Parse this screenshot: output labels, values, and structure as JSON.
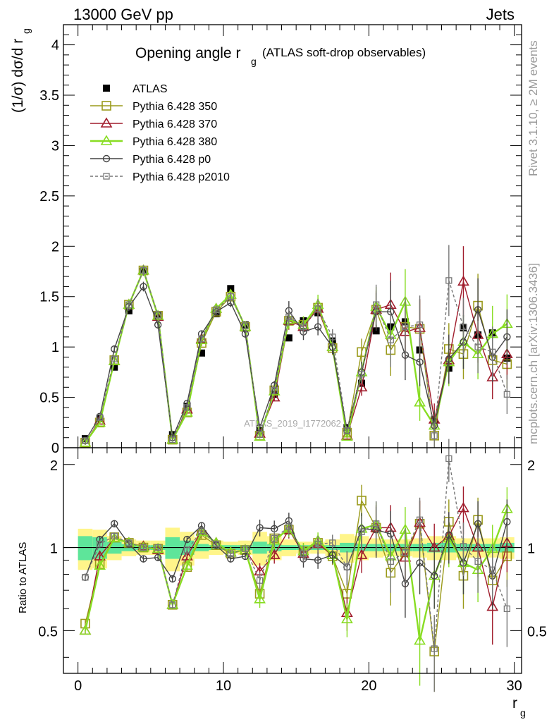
{
  "header": {
    "left": "13000 GeV pp",
    "right": "Jets"
  },
  "side_labels": {
    "rivet": "Rivet 3.1.10, ≥ 2M events",
    "mcplots": "mcplots.cern.ch [arXiv:1306.3436]"
  },
  "chart_data": [
    {
      "type": "scatter",
      "title_main": "Opening angle r",
      "title_sub": "g",
      "title_rest": "(ATLAS soft-drop observables)",
      "ylabel": "(1/σ) dσ/d r",
      "ylabel_sub": "g",
      "watermark": "ATLAS_2019_I1772062",
      "xlim": [
        -1,
        30.5
      ],
      "ylim": [
        0,
        4.2
      ],
      "yticks": [
        "0",
        "0.5",
        "1",
        "1.5",
        "2",
        "2.5",
        "3",
        "3.5",
        "4"
      ],
      "x": [
        0.5,
        1.5,
        2.5,
        3.5,
        4.5,
        5.5,
        6.5,
        7.5,
        8.5,
        9.5,
        10.5,
        11.5,
        12.5,
        13.5,
        14.5,
        15.5,
        16.5,
        17.5,
        18.5,
        19.5,
        20.5,
        21.5,
        22.5,
        23.5,
        24.5,
        25.5,
        26.5,
        27.5,
        28.5,
        29.5
      ],
      "series": [
        {
          "name": "ATLAS",
          "color": "#000000",
          "marker": "square-filled",
          "line": "none",
          "values": [
            0.09,
            0.29,
            0.8,
            1.36,
            1.75,
            1.32,
            0.13,
            0.41,
            0.94,
            1.33,
            1.58,
            1.22,
            0.17,
            0.53,
            1.09,
            1.26,
            1.34,
            1.06,
            0.2,
            0.64,
            1.16,
            1.2,
            1.25,
            0.97,
            0.28,
            0.79,
            1.19,
            1.12,
            1.14,
            0.89
          ]
        },
        {
          "name": "Pythia 6.428 350",
          "color": "#9a9a1a",
          "marker": "square-open",
          "line": "solid",
          "values": [
            0.05,
            0.25,
            0.87,
            1.42,
            1.76,
            1.31,
            0.08,
            0.35,
            1.04,
            1.35,
            1.5,
            1.2,
            0.12,
            0.57,
            1.26,
            1.22,
            1.39,
            0.99,
            0.15,
            0.95,
            1.37,
            0.97,
            1.2,
            1.18,
            0.12,
            0.98,
            0.93,
            1.41,
            0.87,
            0.83
          ]
        },
        {
          "name": "Pythia 6.428 370",
          "color": "#a01c2c",
          "marker": "triangle-open",
          "line": "solid",
          "values": [
            0.05,
            0.27,
            0.86,
            1.42,
            1.76,
            1.3,
            0.08,
            0.38,
            1.08,
            1.38,
            1.52,
            1.2,
            0.14,
            0.5,
            1.26,
            1.2,
            1.38,
            1.0,
            0.12,
            0.6,
            1.37,
            1.42,
            1.15,
            1.19,
            0.28,
            0.87,
            1.65,
            1.12,
            0.7,
            0.93
          ]
        },
        {
          "name": "Pythia 6.428 380",
          "color": "#88dd22",
          "marker": "triangle-open",
          "line": "solid",
          "values": [
            0.05,
            0.25,
            0.86,
            1.42,
            1.76,
            1.31,
            0.08,
            0.35,
            1.07,
            1.38,
            1.52,
            1.2,
            0.11,
            0.56,
            1.27,
            1.22,
            1.42,
            1.0,
            0.11,
            0.75,
            1.4,
            1.12,
            1.45,
            0.45,
            0.22,
            0.85,
            1.05,
            0.93,
            1.13,
            1.23
          ]
        },
        {
          "name": "Pythia 6.428 p0",
          "color": "#444444",
          "marker": "circle-open",
          "line": "solid",
          "values": [
            0.07,
            0.31,
            0.98,
            1.4,
            1.6,
            1.22,
            0.1,
            0.44,
            1.13,
            1.35,
            1.44,
            1.13,
            0.2,
            0.62,
            1.36,
            1.15,
            1.2,
            1.0,
            0.17,
            0.75,
            1.35,
            1.35,
            0.92,
            0.85,
            0.22,
            0.88,
            1.05,
            1.37,
            0.9,
            1.1
          ]
        },
        {
          "name": "Pythia 6.428 p2010",
          "color": "#777777",
          "marker": "square-open-small",
          "line": "dashed",
          "values": [
            0.07,
            0.3,
            0.88,
            1.42,
            1.76,
            1.32,
            0.08,
            0.4,
            1.08,
            1.37,
            1.5,
            1.21,
            0.13,
            0.57,
            1.3,
            1.2,
            1.38,
            1.1,
            0.17,
            0.73,
            1.42,
            1.07,
            1.2,
            1.22,
            0.12,
            1.66,
            1.2,
            1.0,
            0.95,
            0.53
          ]
        }
      ],
      "legend_position": "top-left"
    },
    {
      "type": "line",
      "ylabel": "Ratio to ATLAS",
      "xlabel": "r",
      "xlabel_sub": "g",
      "xlim": [
        -1,
        30.5
      ],
      "xticks": [
        "0",
        "10",
        "20",
        "30"
      ],
      "ylim": [
        0.35,
        2.3
      ],
      "ylim_note": "log scale",
      "yticks": [
        "0.5",
        "1",
        "2"
      ],
      "band_color_stat": "#5ee59a",
      "band_color_total": "#fff58a",
      "series": [
        {
          "name": "Pythia 6.428 350",
          "values": [
            0.53,
            0.87,
            1.09,
            1.04,
            1.0,
            0.99,
            0.62,
            0.85,
            1.11,
            1.02,
            0.95,
            0.98,
            0.68,
            1.08,
            1.16,
            0.97,
            1.04,
            0.93,
            0.68,
            1.48,
            1.18,
            0.81,
            0.96,
            1.22,
            0.42,
            1.24,
            0.79,
            1.26,
            0.76,
            0.93
          ]
        },
        {
          "name": "Pythia 6.428 370",
          "values": [
            0.5,
            0.93,
            1.08,
            1.04,
            1.01,
            0.98,
            0.62,
            0.93,
            1.15,
            1.04,
            0.96,
            0.98,
            0.82,
            0.94,
            1.16,
            0.95,
            1.03,
            0.94,
            0.58,
            0.94,
            1.18,
            1.18,
            0.92,
            1.23,
            1.0,
            1.1,
            1.39,
            1.0,
            0.61,
            1.04
          ]
        },
        {
          "name": "Pythia 6.428 380",
          "values": [
            0.5,
            0.86,
            1.08,
            1.04,
            1.0,
            0.99,
            0.62,
            0.86,
            1.14,
            1.04,
            0.96,
            0.98,
            0.65,
            1.06,
            1.17,
            0.97,
            1.06,
            0.94,
            0.55,
            1.17,
            1.21,
            0.93,
            1.16,
            0.46,
            0.79,
            1.08,
            0.88,
            0.83,
            0.99,
            1.38
          ]
        },
        {
          "name": "Pythia 6.428 p0",
          "values": [
            0.78,
            1.07,
            1.22,
            1.03,
            0.91,
            0.92,
            0.77,
            1.07,
            1.2,
            1.02,
            0.91,
            0.93,
            1.18,
            1.17,
            1.25,
            0.91,
            0.9,
            0.94,
            0.85,
            1.17,
            1.16,
            1.12,
            0.74,
            0.88,
            0.79,
            1.11,
            0.88,
            1.22,
            0.79,
            1.24
          ]
        },
        {
          "name": "Pythia 6.428 p2010",
          "values": [
            0.78,
            1.03,
            1.1,
            1.04,
            1.0,
            1.0,
            0.62,
            0.98,
            1.15,
            1.03,
            0.95,
            0.99,
            0.76,
            1.08,
            1.19,
            0.95,
            1.03,
            1.04,
            0.85,
            1.14,
            1.22,
            0.89,
            0.96,
            1.26,
            0.43,
            2.1,
            1.01,
            0.89,
            0.83,
            0.6
          ]
        }
      ]
    }
  ]
}
